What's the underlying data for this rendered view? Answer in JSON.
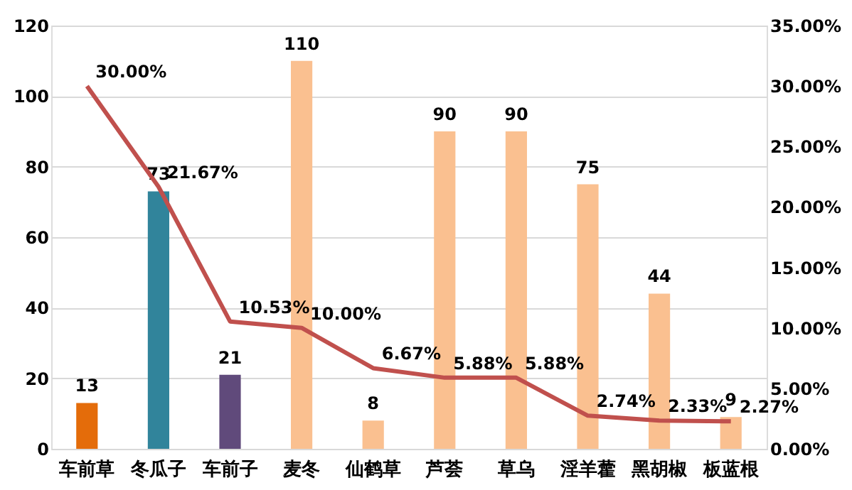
{
  "chart_data": {
    "type": "bar",
    "categories": [
      "车前草",
      "冬瓜子",
      "车前子",
      "麦冬",
      "仙鹤草",
      "芦荟",
      "草乌",
      "淫羊藿",
      "黑胡椒",
      "板蓝根"
    ],
    "series": [
      {
        "colors": [
          "#e46c0a",
          "#31849b",
          "#604a7b",
          "#fac090",
          "#fac090",
          "#fac090",
          "#fac090",
          "#fac090",
          "#fac090",
          "#fac090"
        ],
        "values": [
          13,
          73,
          21,
          110,
          8,
          90,
          90,
          75,
          44,
          9
        ],
        "value_labels": [
          "13",
          "73",
          "21",
          "110",
          "8",
          "90",
          "90",
          "75",
          "44",
          "9"
        ]
      },
      {
        "type": "line",
        "axis": "y2",
        "color": "#c0504d",
        "values": [
          30.0,
          21.67,
          10.53,
          10.0,
          6.67,
          5.88,
          5.88,
          2.74,
          2.33,
          2.27
        ],
        "value_labels": [
          "30.00%",
          "21.67%",
          "10.53%",
          "10.00%",
          "6.67%",
          "5.88%",
          "5.88%",
          "2.74%",
          "2.33%",
          "2.27%"
        ]
      }
    ],
    "ylim": [
      0,
      120
    ],
    "yticks": [
      0,
      20,
      40,
      60,
      80,
      100,
      120
    ],
    "y2lim": [
      0,
      35
    ],
    "y2ticks": [
      {
        "value": 0,
        "label": "0.00%"
      },
      {
        "value": 5,
        "label": "5.00%"
      },
      {
        "value": 10,
        "label": "10.00%"
      },
      {
        "value": 15,
        "label": "15.00%"
      },
      {
        "value": 20,
        "label": "20.00%"
      },
      {
        "value": 25,
        "label": "25.00%"
      },
      {
        "value": 30,
        "label": "30.00%"
      },
      {
        "value": 35,
        "label": "35.00%"
      }
    ],
    "grid": "y",
    "marker": "none",
    "line_style": "solid"
  }
}
